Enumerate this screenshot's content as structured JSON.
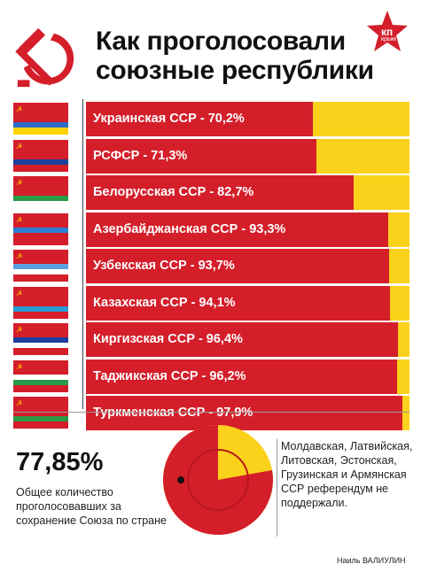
{
  "header": {
    "title_line1": "Как проголосовали",
    "title_line2": "союзные республики",
    "logo_text": "кп",
    "logo_sub": "крым"
  },
  "chart_data": {
    "type": "bar",
    "title": "Как проголосовали союзные республики",
    "categories": [
      "Украинская ССР",
      "РСФСР",
      "Белорусская ССР",
      "Азербайджанская ССР",
      "Узбекская ССР",
      "Казахская ССР",
      "Киргизская ССР",
      "Таджикская ССР",
      "Туркменская ССР"
    ],
    "values": [
      70.2,
      71.3,
      82.7,
      93.3,
      93.7,
      94.1,
      96.4,
      96.2,
      97.9
    ],
    "labels": [
      "Украинская ССР - 70,2%",
      "РСФСР - 71,3%",
      "Белорусская ССР - 82,7%",
      "Азербайджанская ССР - 93,3%",
      "Узбекская ССР - 93,7%",
      "Казахская ССР - 94,1%",
      "Киргизская ССР - 96,4%",
      "Таджикская ССР - 96,2%",
      "Туркменская ССР - 97,9%"
    ],
    "ylim": [
      0,
      100
    ],
    "colors": {
      "yes": "#d41e2a",
      "rest": "#fbd21b"
    }
  },
  "summary": {
    "percent": "77,85%",
    "description": "Общее количество проголосовавших за сохранение Союза по стране",
    "pie_value": 77.85
  },
  "note": "Молдавская, Латвийская, Литовская, Эстонская, Грузинская и Армянская ССР референдум не поддержали.",
  "credit": "Наиль ВАЛИУЛИН",
  "colors": {
    "red": "#d41e2a",
    "yellow": "#fbd21b",
    "text": "#111111"
  }
}
